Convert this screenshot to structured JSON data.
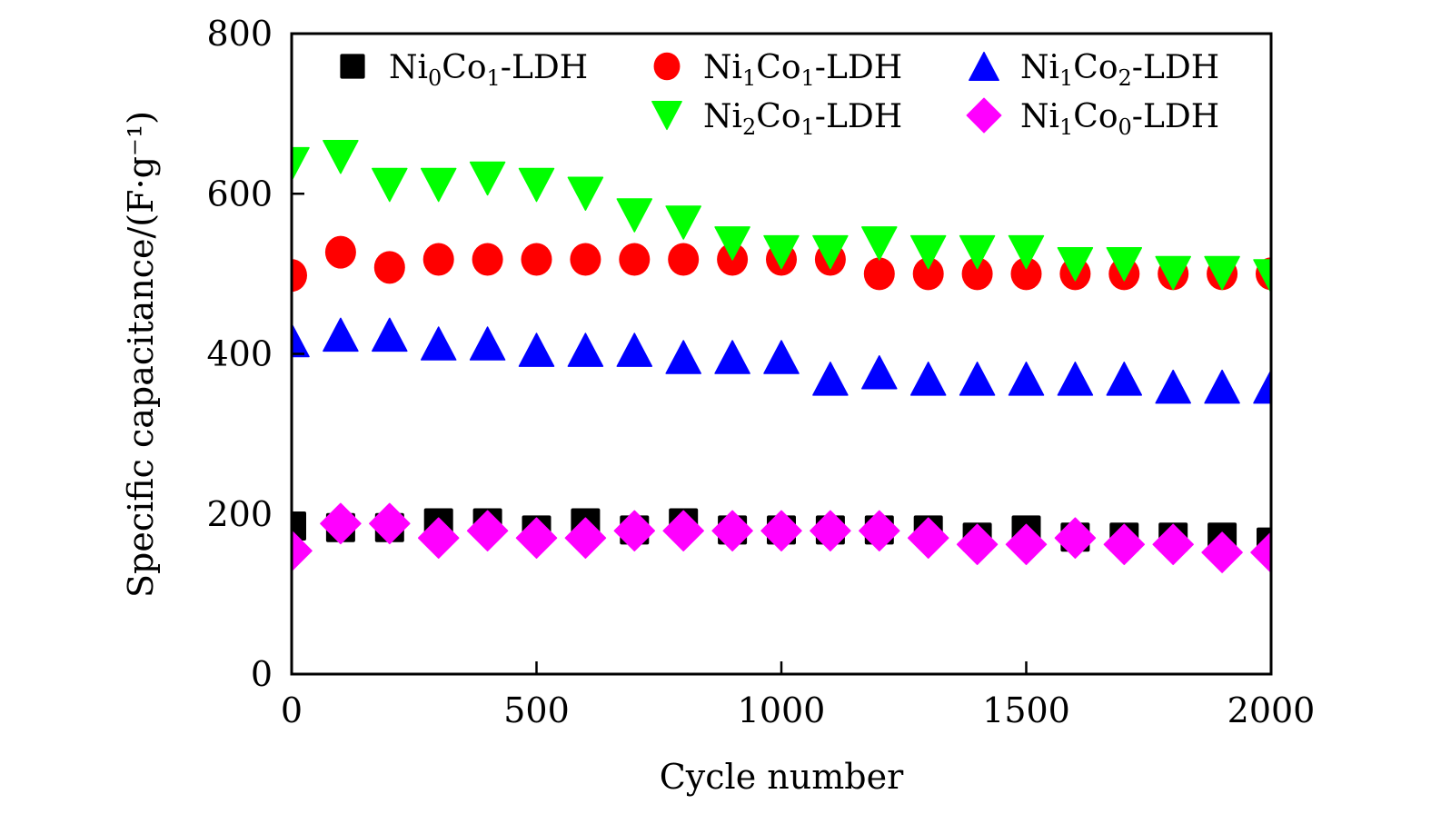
{
  "chart_data": {
    "type": "scatter",
    "title": "",
    "xlabel": "Cycle number",
    "ylabel": "Specific capacitance/(F·g⁻¹)",
    "xlim": [
      0,
      2000
    ],
    "ylim": [
      0,
      800
    ],
    "xticks": [
      0,
      500,
      1000,
      1500,
      2000
    ],
    "yticks": [
      0,
      200,
      400,
      600,
      800
    ],
    "grid": false,
    "legend_position": "top-right",
    "x": [
      0,
      100,
      200,
      300,
      400,
      500,
      600,
      700,
      800,
      900,
      1000,
      1100,
      1200,
      1300,
      1400,
      1500,
      1600,
      1700,
      1800,
      1900,
      2000
    ],
    "series": [
      {
        "name": "Ni0Co1-LDH",
        "label_parts": [
          [
            "Ni",
            ""
          ],
          [
            "0",
            "sub"
          ],
          [
            "Co",
            ""
          ],
          [
            "1",
            "sub"
          ],
          [
            "-LDH",
            ""
          ]
        ],
        "marker": "square",
        "color": "#000000",
        "values": [
          185,
          183,
          183,
          189,
          189,
          180,
          189,
          180,
          189,
          180,
          180,
          180,
          180,
          180,
          171,
          180,
          171,
          171,
          171,
          171,
          165
        ]
      },
      {
        "name": "Ni1Co1-LDH",
        "label_parts": [
          [
            "Ni",
            ""
          ],
          [
            "1",
            "sub"
          ],
          [
            "Co",
            ""
          ],
          [
            "1",
            "sub"
          ],
          [
            "-LDH",
            ""
          ]
        ],
        "marker": "circle",
        "color": "#ff0000",
        "values": [
          498,
          527,
          508,
          518,
          518,
          518,
          518,
          518,
          518,
          518,
          518,
          518,
          500,
          500,
          500,
          500,
          500,
          500,
          500,
          500,
          500
        ]
      },
      {
        "name": "Ni1Co2-LDH",
        "label_parts": [
          [
            "Ni",
            ""
          ],
          [
            "1",
            "sub"
          ],
          [
            "Co",
            ""
          ],
          [
            "2",
            "sub"
          ],
          [
            "-LDH",
            ""
          ]
        ],
        "marker": "triangle-up",
        "color": "#0000ff",
        "values": [
          417,
          424,
          424,
          413,
          413,
          405,
          405,
          405,
          396,
          396,
          396,
          369,
          377,
          369,
          369,
          369,
          369,
          369,
          359,
          359,
          359
        ]
      },
      {
        "name": "Ni2Co1-LDH",
        "label_parts": [
          [
            "Ni",
            ""
          ],
          [
            "2",
            "sub"
          ],
          [
            "Co",
            ""
          ],
          [
            "1",
            "sub"
          ],
          [
            "-LDH",
            ""
          ]
        ],
        "marker": "triangle-down",
        "color": "#00ff00",
        "values": [
          637,
          646,
          611,
          611,
          619,
          611,
          600,
          573,
          564,
          538,
          527,
          527,
          538,
          527,
          527,
          527,
          512,
          512,
          501,
          501,
          497
        ]
      },
      {
        "name": "Ni1Co0-LDH",
        "label_parts": [
          [
            "Ni",
            ""
          ],
          [
            "1",
            "sub"
          ],
          [
            "Co",
            ""
          ],
          [
            "0",
            "sub"
          ],
          [
            "-LDH",
            ""
          ]
        ],
        "marker": "diamond",
        "color": "#ff00ff",
        "values": [
          154,
          188,
          188,
          170,
          179,
          170,
          170,
          179,
          179,
          179,
          179,
          179,
          179,
          170,
          162,
          162,
          170,
          162,
          162,
          152,
          152
        ]
      }
    ],
    "legend_order": [
      0,
      1,
      2,
      3,
      4
    ]
  }
}
